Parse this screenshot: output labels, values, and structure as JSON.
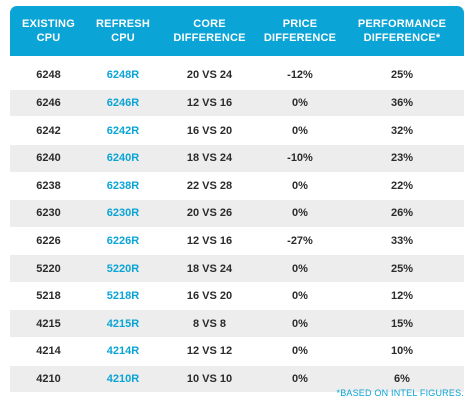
{
  "header": {
    "existing": [
      "EXISTING",
      "CPU"
    ],
    "refresh": [
      "REFRESH",
      "CPU"
    ],
    "core": [
      "CORE",
      "DIFFERENCE"
    ],
    "price": [
      "PRICE",
      "DIFFERENCE"
    ],
    "performance": [
      "PERFORMANCE",
      "DIFFERENCE*"
    ]
  },
  "rows": [
    {
      "existing": "6248",
      "refresh": "6248R",
      "core": "20 VS 24",
      "price": "-12%",
      "performance": "25%"
    },
    {
      "existing": "6246",
      "refresh": "6246R",
      "core": "12 VS 16",
      "price": "0%",
      "performance": "36%"
    },
    {
      "existing": "6242",
      "refresh": "6242R",
      "core": "16 VS 20",
      "price": "0%",
      "performance": "32%"
    },
    {
      "existing": "6240",
      "refresh": "6240R",
      "core": "18 VS 24",
      "price": "-10%",
      "performance": "23%"
    },
    {
      "existing": "6238",
      "refresh": "6238R",
      "core": "22 VS 28",
      "price": "0%",
      "performance": "22%"
    },
    {
      "existing": "6230",
      "refresh": "6230R",
      "core": "20 VS 26",
      "price": "0%",
      "performance": "26%"
    },
    {
      "existing": "6226",
      "refresh": "6226R",
      "core": "12 VS 16",
      "price": "-27%",
      "performance": "33%"
    },
    {
      "existing": "5220",
      "refresh": "5220R",
      "core": "18 VS 24",
      "price": "0%",
      "performance": "25%"
    },
    {
      "existing": "5218",
      "refresh": "5218R",
      "core": "16 VS 20",
      "price": "0%",
      "performance": "12%"
    },
    {
      "existing": "4215",
      "refresh": "4215R",
      "core": "8 VS 8",
      "price": "0%",
      "performance": "15%"
    },
    {
      "existing": "4214",
      "refresh": "4214R",
      "core": "12 VS 12",
      "price": "0%",
      "performance": "10%"
    },
    {
      "existing": "4210",
      "refresh": "4210R",
      "core": "10 VS 10",
      "price": "0%",
      "performance": "6%"
    }
  ],
  "footnote": "*BASED ON INTEL FIGURES.",
  "colors": {
    "accent": "#0aa4d6",
    "alt_row": "#ededed",
    "text": "#2b2b2b"
  }
}
